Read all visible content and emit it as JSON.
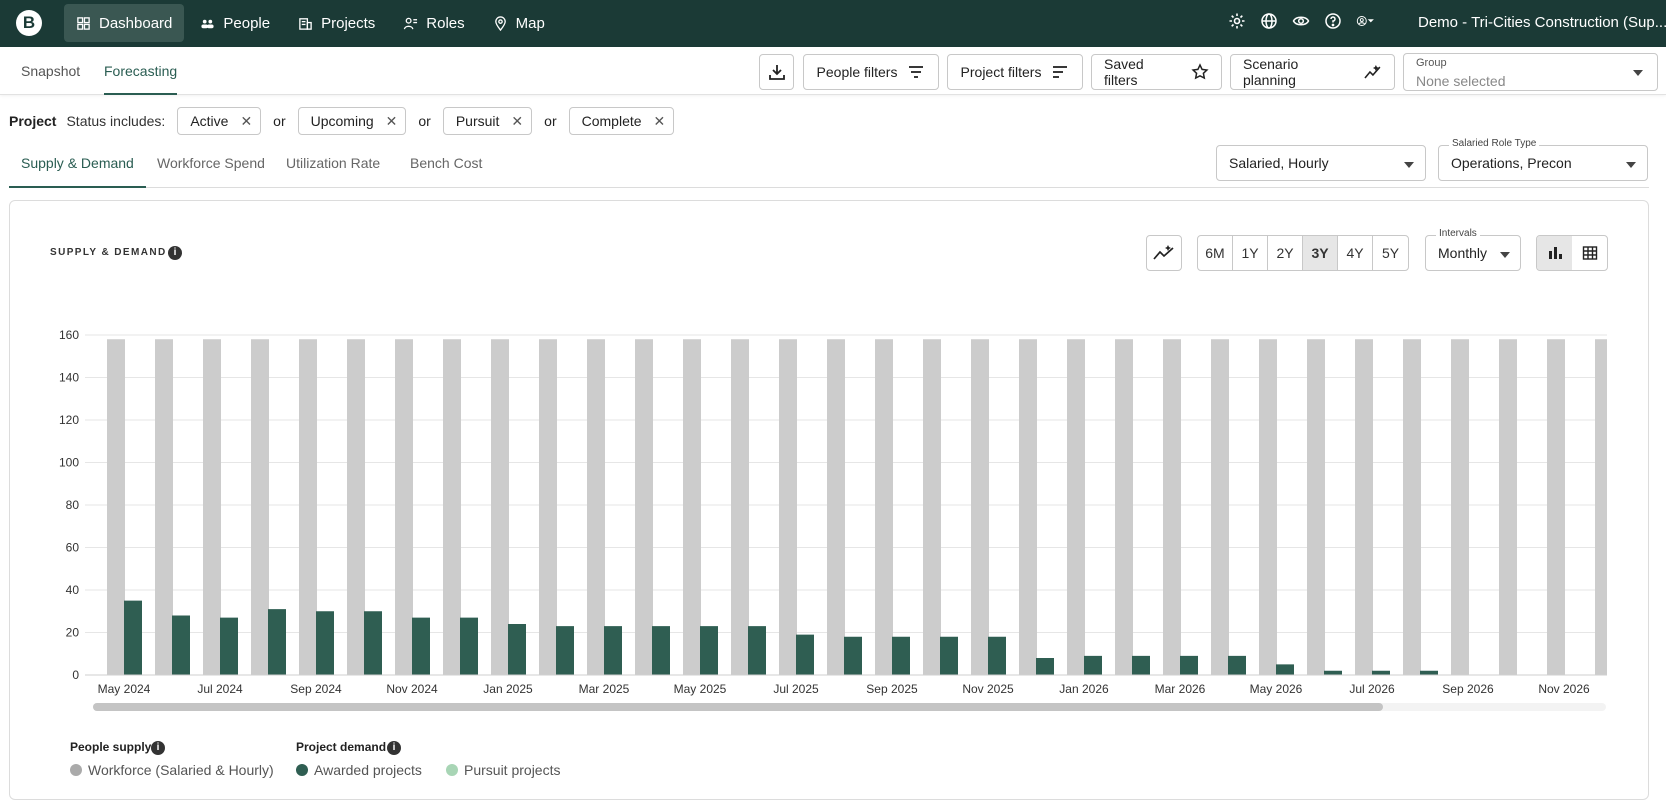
{
  "nav": {
    "logo": "B",
    "items": [
      {
        "label": "Dashboard",
        "icon": "dashboard-icon",
        "active": true
      },
      {
        "label": "People",
        "icon": "people-icon"
      },
      {
        "label": "Projects",
        "icon": "projects-icon"
      },
      {
        "label": "Roles",
        "icon": "roles-icon"
      },
      {
        "label": "Map",
        "icon": "map-pin-icon"
      }
    ],
    "org": "Demo - Tri-Cities Construction (Sup..."
  },
  "subtabs": [
    "Snapshot",
    "Forecasting"
  ],
  "toolbar": {
    "people_filters": "People filters",
    "project_filters": "Project filters",
    "saved_filters": "Saved filters",
    "scenario_planning": "Scenario planning",
    "group_label": "Group",
    "group_value": "None selected"
  },
  "filters": {
    "prefix": "Project",
    "status_label": "Status includes:",
    "joiner": "or",
    "chips": [
      "Active",
      "Upcoming",
      "Pursuit",
      "Complete"
    ]
  },
  "metric_tabs": [
    "Supply & Demand",
    "Workforce Spend",
    "Utilization Rate",
    "Bench Cost"
  ],
  "employee_type": "Salaried, Hourly",
  "role_type": {
    "label": "Salaried Role Type",
    "value": "Operations, Precon"
  },
  "card": {
    "title": "SUPPLY & DEMAND",
    "ranges": [
      "6M",
      "1Y",
      "2Y",
      "3Y",
      "4Y",
      "5Y"
    ],
    "active_range": "3Y",
    "intervals_label": "Intervals",
    "interval": "Monthly"
  },
  "legend": {
    "supply_header": "People supply",
    "demand_header": "Project demand",
    "supply_item": "Workforce (Salaried & Hourly)",
    "awarded_item": "Awarded projects",
    "pursuit_item": "Pursuit projects"
  },
  "colors": {
    "supply": "#cccccc",
    "awarded": "#2f5e52",
    "pursuit": "#a8d5b5",
    "nav_bg": "#1b3a36"
  },
  "chart_data": {
    "type": "bar",
    "ylim": [
      0,
      160
    ],
    "yticks": [
      0,
      20,
      40,
      60,
      80,
      100,
      120,
      140,
      160
    ],
    "categories": [
      "May 2024",
      "Jun 2024",
      "Jul 2024",
      "Aug 2024",
      "Sep 2024",
      "Oct 2024",
      "Nov 2024",
      "Dec 2024",
      "Jan 2025",
      "Feb 2025",
      "Mar 2025",
      "Apr 2025",
      "May 2025",
      "Jun 2025",
      "Jul 2025",
      "Aug 2025",
      "Sep 2025",
      "Oct 2025",
      "Nov 2025",
      "Dec 2025",
      "Jan 2026",
      "Feb 2026",
      "Mar 2026",
      "Apr 2026",
      "May 2026",
      "Jun 2026",
      "Jul 2026",
      "Aug 2026",
      "Sep 2026",
      "Oct 2026",
      "Nov 2026",
      "Dec 2026"
    ],
    "xtick_labels": [
      "May 2024",
      "Jul 2024",
      "Sep 2024",
      "Nov 2024",
      "Jan 2025",
      "Mar 2025",
      "May 2025",
      "Jul 2025",
      "Sep 2025",
      "Nov 2025",
      "Jan 2026",
      "Mar 2026",
      "May 2026",
      "Jul 2026",
      "Sep 2026",
      "Nov 2026"
    ],
    "series": [
      {
        "name": "Workforce (Salaried & Hourly)",
        "values": [
          158,
          158,
          158,
          158,
          158,
          158,
          158,
          158,
          158,
          158,
          158,
          158,
          158,
          158,
          158,
          158,
          158,
          158,
          158,
          158,
          158,
          158,
          158,
          158,
          158,
          158,
          158,
          158,
          158,
          158,
          158,
          158
        ]
      },
      {
        "name": "Awarded projects",
        "values": [
          35,
          28,
          27,
          31,
          30,
          30,
          27,
          27,
          24,
          23,
          23,
          23,
          23,
          23,
          19,
          18,
          18,
          18,
          18,
          8,
          9,
          9,
          9,
          9,
          5,
          2,
          2,
          2,
          0,
          0,
          0,
          0
        ]
      },
      {
        "name": "Pursuit projects",
        "values": [
          0,
          0,
          0,
          0,
          0,
          0,
          0,
          0,
          0,
          0,
          0,
          0,
          0,
          0,
          0,
          0,
          0,
          0,
          0,
          0,
          0,
          0,
          0,
          0,
          0,
          0,
          0,
          0,
          0,
          0,
          0,
          0
        ]
      }
    ]
  }
}
